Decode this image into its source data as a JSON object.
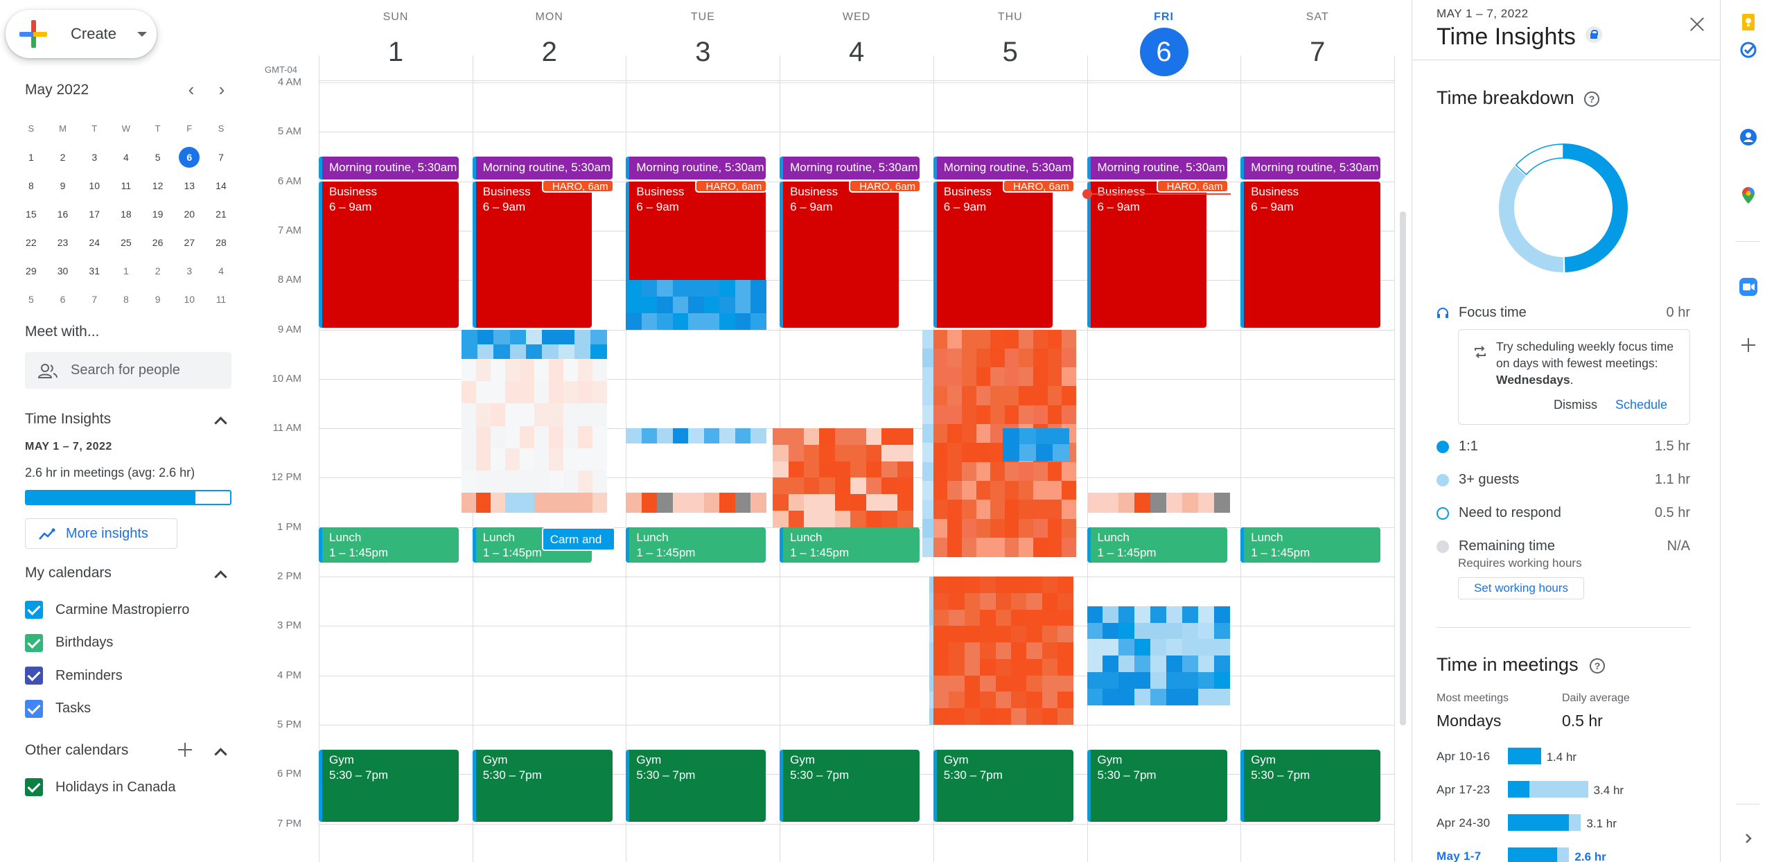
{
  "sidebar": {
    "create_label": "Create",
    "mini_calendar": {
      "title": "May 2022",
      "dows": [
        "S",
        "M",
        "T",
        "W",
        "T",
        "F",
        "S"
      ],
      "weeks": [
        [
          "1",
          "2",
          "3",
          "4",
          "5",
          "6",
          "7"
        ],
        [
          "8",
          "9",
          "10",
          "11",
          "12",
          "13",
          "14"
        ],
        [
          "15",
          "16",
          "17",
          "18",
          "19",
          "20",
          "21"
        ],
        [
          "22",
          "23",
          "24",
          "25",
          "26",
          "27",
          "28"
        ],
        [
          "29",
          "30",
          "31",
          "1",
          "2",
          "3",
          "4"
        ],
        [
          "5",
          "6",
          "7",
          "8",
          "9",
          "10",
          "11"
        ]
      ],
      "today": "6"
    },
    "meet_with": {
      "title": "Meet with...",
      "placeholder": "Search for people"
    },
    "time_insights": {
      "title": "Time Insights",
      "date_range": "MAY 1 – 7, 2022",
      "summary": "2.6 hr in meetings (avg: 2.6 hr)",
      "progress": 0.83,
      "more_label": "More insights"
    },
    "my_calendars": {
      "title": "My calendars",
      "items": [
        {
          "label": "Carmine Mastropierro",
          "color": "#039be5"
        },
        {
          "label": "Birthdays",
          "color": "#33b679"
        },
        {
          "label": "Reminders",
          "color": "#3f51b5"
        },
        {
          "label": "Tasks",
          "color": "#4285f4"
        }
      ]
    },
    "other_calendars": {
      "title": "Other calendars",
      "items": [
        {
          "label": "Holidays in Canada",
          "color": "#0b8043"
        }
      ]
    }
  },
  "calendar": {
    "timezone": "GMT-04",
    "days": [
      {
        "dow": "SUN",
        "num": "1"
      },
      {
        "dow": "MON",
        "num": "2"
      },
      {
        "dow": "TUE",
        "num": "3"
      },
      {
        "dow": "WED",
        "num": "4"
      },
      {
        "dow": "THU",
        "num": "5"
      },
      {
        "dow": "FRI",
        "num": "6",
        "today": true
      },
      {
        "dow": "SAT",
        "num": "7"
      }
    ],
    "hours": [
      "4 AM",
      "5 AM",
      "6 AM",
      "7 AM",
      "8 AM",
      "9 AM",
      "10 AM",
      "11 AM",
      "12 PM",
      "1 PM",
      "2 PM",
      "3 PM",
      "4 PM",
      "5 PM",
      "6 PM",
      "7 PM"
    ],
    "events": {
      "morning_label": "Morning routine, 5:30am",
      "haro_label": "HARO, 6am",
      "business_title": "Business",
      "business_time": "6 – 9am",
      "lunch_title": "Lunch",
      "lunch_time": "1 – 1:45pm",
      "gym_title": "Gym",
      "gym_time": "5:30 – 7pm",
      "carm_label": "Carm and B"
    }
  },
  "panel": {
    "date_range": "MAY 1 – 7, 2022",
    "title": "Time Insights",
    "breakdown_title": "Time breakdown",
    "focus": {
      "label": "Focus time",
      "value": "0 hr"
    },
    "focus_card": {
      "message": "Try scheduling weekly focus time on days with fewest meetings:",
      "day": "Wednesdays",
      "dismiss": "Dismiss",
      "schedule": "Schedule"
    },
    "breakdown": [
      {
        "label": "1:1",
        "value": "1.5 hr",
        "color": "#039be5",
        "hours": 1.5
      },
      {
        "label": "3+ guests",
        "value": "1.1 hr",
        "color": "#a8d8f4",
        "hours": 1.1
      },
      {
        "label": "Need to respond",
        "value": "0.5 hr",
        "color": "outline"
      },
      {
        "label": "Remaining time",
        "value": "N/A",
        "color": "#dadce0"
      }
    ],
    "requires_note": "Requires working hours",
    "set_hours_label": "Set working hours",
    "meetings_title": "Time in meetings",
    "most_meetings_label": "Most meetings",
    "most_meetings_value": "Mondays",
    "daily_avg_label": "Daily average",
    "daily_avg_value": "0.5 hr",
    "weeks": [
      {
        "label": "Apr 10-16",
        "value": "1.4 hr",
        "dark": 1.4,
        "light": 0
      },
      {
        "label": "Apr 17-23",
        "value": "3.4 hr",
        "dark": 0.9,
        "light": 2.5
      },
      {
        "label": "Apr 24-30",
        "value": "3.1 hr",
        "dark": 2.6,
        "light": 0.5
      },
      {
        "label": "May 1-7",
        "value": "2.6 hr",
        "dark": 2.1,
        "light": 0.5,
        "current": true
      }
    ]
  }
}
